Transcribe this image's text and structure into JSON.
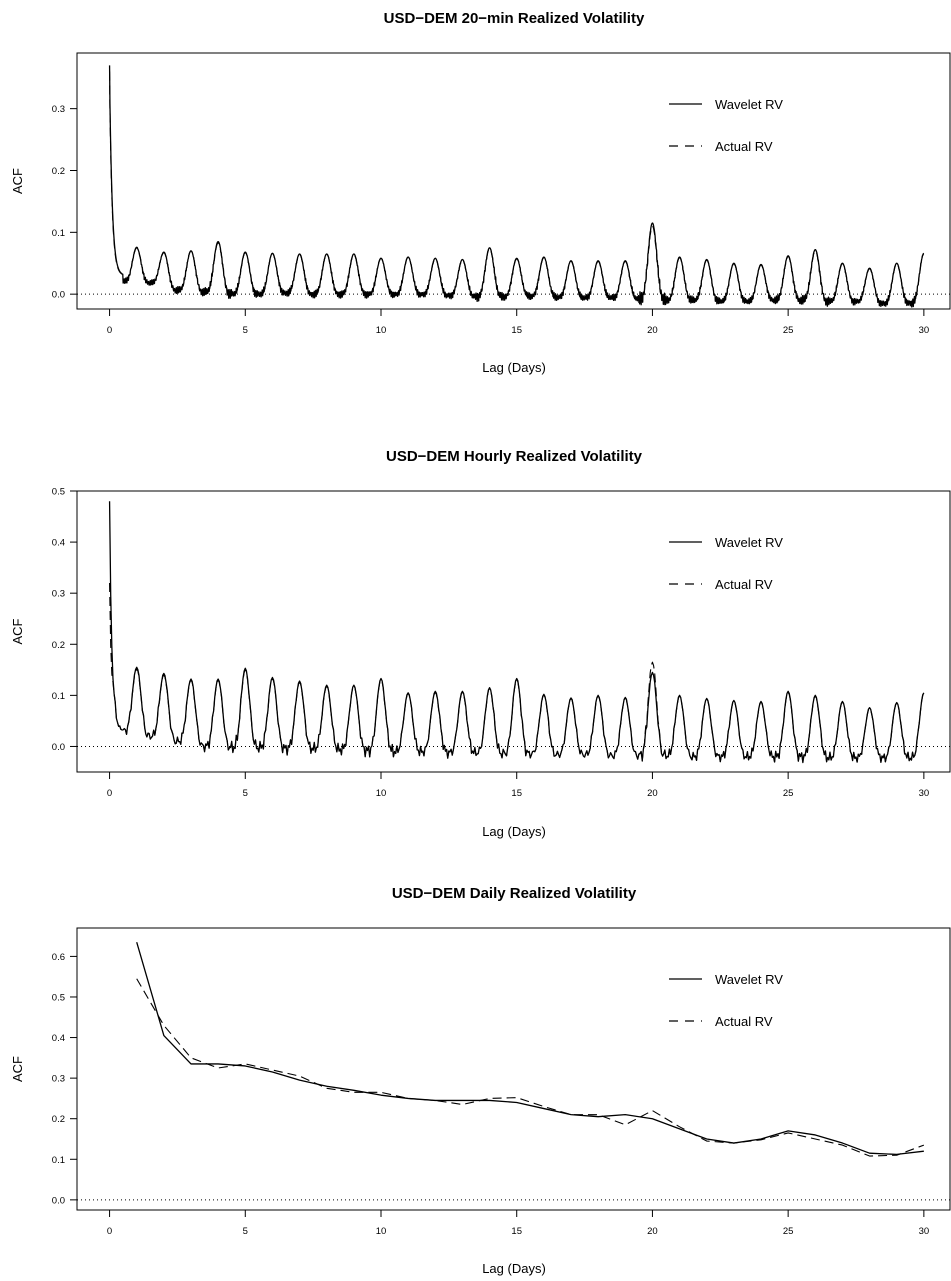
{
  "chart_data": [
    {
      "type": "line",
      "title": "USD−DEM 20−min Realized Volatility",
      "xlabel": "Lag (Days)",
      "ylabel": "ACF",
      "xlim": [
        -1.2,
        31
      ],
      "ylim": [
        -0.024,
        0.39
      ],
      "xticks": [
        0,
        5,
        10,
        15,
        20,
        25,
        30
      ],
      "yticks": [
        0.0,
        0.1,
        0.2,
        0.3
      ],
      "ytick_labels": [
        "0.0",
        "0.1",
        "0.2",
        "0.3"
      ],
      "legend_position": "top-right",
      "reference_line": {
        "y": 0,
        "style": "dotted"
      },
      "resolution_per_day": 72,
      "series": [
        {
          "name": "Wavelet RV",
          "style": "solid",
          "color": "#000000",
          "lag0": 0.37,
          "decay": 0.28,
          "peaks": [
            0.08,
            0.075,
            0.068,
            0.07,
            0.085,
            0.068,
            0.066,
            0.065,
            0.065,
            0.065,
            0.058,
            0.06,
            0.058,
            0.056,
            0.075,
            0.058,
            0.06,
            0.054,
            0.054,
            0.054,
            0.115,
            0.06,
            0.056,
            0.05,
            0.048,
            0.062,
            0.072,
            0.05,
            0.042,
            0.05,
            0.066
          ],
          "troughs": [
            0.02,
            0.018,
            0.006,
            0.003,
            0.0,
            0.0,
            0.002,
            0.0,
            0.0,
            0.0,
            0.0,
            0.0,
            -0.002,
            -0.004,
            -0.004,
            -0.003,
            -0.005,
            -0.006,
            -0.006,
            -0.008,
            -0.01,
            -0.01,
            -0.012,
            -0.012,
            -0.01,
            -0.01,
            -0.012,
            -0.012,
            -0.015,
            -0.014
          ]
        },
        {
          "name": "Actual RV",
          "style": "dashed",
          "color": "#000000",
          "lag0": 0.36,
          "decay": 0.27,
          "peaks": [
            0.079,
            0.076,
            0.067,
            0.07,
            0.083,
            0.067,
            0.066,
            0.064,
            0.065,
            0.064,
            0.058,
            0.06,
            0.057,
            0.055,
            0.074,
            0.057,
            0.059,
            0.053,
            0.053,
            0.053,
            0.11,
            0.059,
            0.055,
            0.049,
            0.047,
            0.061,
            0.07,
            0.049,
            0.041,
            0.049,
            0.065
          ],
          "troughs": [
            0.02,
            0.018,
            0.006,
            0.003,
            0.0,
            0.0,
            0.002,
            0.0,
            0.0,
            0.0,
            0.0,
            0.0,
            -0.002,
            -0.004,
            -0.004,
            -0.003,
            -0.005,
            -0.006,
            -0.006,
            -0.008,
            -0.01,
            -0.01,
            -0.012,
            -0.012,
            -0.01,
            -0.01,
            -0.012,
            -0.012,
            -0.015,
            -0.014
          ]
        }
      ]
    },
    {
      "type": "line",
      "title": "USD−DEM Hourly Realized Volatility",
      "xlabel": "Lag (Days)",
      "ylabel": "ACF",
      "xlim": [
        -1.2,
        31
      ],
      "ylim": [
        -0.05,
        0.5
      ],
      "xticks": [
        0,
        5,
        10,
        15,
        20,
        25,
        30
      ],
      "yticks": [
        0.0,
        0.1,
        0.2,
        0.3,
        0.4,
        0.5
      ],
      "ytick_labels": [
        "0.0",
        "0.1",
        "0.2",
        "0.3",
        "0.4",
        "0.5"
      ],
      "legend_position": "top-right",
      "reference_line": {
        "y": 0,
        "style": "dotted"
      },
      "resolution_per_day": 24,
      "series": [
        {
          "name": "Wavelet RV",
          "style": "solid",
          "color": "#000000",
          "lag0": 0.48,
          "decay": 0.25,
          "peaks": [
            0.16,
            0.155,
            0.143,
            0.132,
            0.132,
            0.153,
            0.135,
            0.128,
            0.12,
            0.12,
            0.133,
            0.105,
            0.108,
            0.108,
            0.115,
            0.133,
            0.102,
            0.095,
            0.1,
            0.096,
            0.145,
            0.1,
            0.094,
            0.09,
            0.088,
            0.108,
            0.1,
            0.088,
            0.076,
            0.086,
            0.105
          ],
          "troughs": [
            0.03,
            0.02,
            0.01,
            0.0,
            -0.002,
            -0.002,
            -0.004,
            -0.004,
            -0.006,
            -0.008,
            -0.01,
            -0.01,
            -0.012,
            -0.012,
            -0.014,
            -0.015,
            -0.016,
            -0.016,
            -0.018,
            -0.018,
            -0.018,
            -0.02,
            -0.02,
            -0.02,
            -0.02,
            -0.02,
            -0.022,
            -0.022,
            -0.022,
            -0.022
          ]
        },
        {
          "name": "Actual RV",
          "style": "dashed",
          "color": "#000000",
          "lag0": 0.32,
          "decay": 0.25,
          "peaks": [
            0.16,
            0.152,
            0.14,
            0.13,
            0.13,
            0.15,
            0.133,
            0.126,
            0.118,
            0.119,
            0.131,
            0.104,
            0.106,
            0.106,
            0.114,
            0.131,
            0.101,
            0.094,
            0.099,
            0.095,
            0.165,
            0.099,
            0.093,
            0.089,
            0.087,
            0.106,
            0.099,
            0.087,
            0.075,
            0.085,
            0.104
          ],
          "troughs": [
            0.03,
            0.02,
            0.01,
            0.0,
            -0.002,
            -0.002,
            -0.004,
            -0.004,
            -0.006,
            -0.008,
            -0.01,
            -0.01,
            -0.012,
            -0.012,
            -0.014,
            -0.015,
            -0.016,
            -0.016,
            -0.018,
            -0.018,
            -0.018,
            -0.02,
            -0.02,
            -0.02,
            -0.02,
            -0.02,
            -0.022,
            -0.022,
            -0.022,
            -0.022
          ]
        }
      ]
    },
    {
      "type": "line",
      "title": "USD−DEM Daily Realized Volatility",
      "xlabel": "Lag (Days)",
      "ylabel": "ACF",
      "xlim": [
        -1.2,
        31
      ],
      "ylim": [
        -0.025,
        0.67
      ],
      "xticks": [
        0,
        5,
        10,
        15,
        20,
        25,
        30
      ],
      "yticks": [
        0.0,
        0.1,
        0.2,
        0.3,
        0.4,
        0.5,
        0.6
      ],
      "ytick_labels": [
        "0.0",
        "0.1",
        "0.2",
        "0.3",
        "0.4",
        "0.5",
        "0.6"
      ],
      "legend_position": "top-right",
      "reference_line": {
        "y": 0,
        "style": "dotted"
      },
      "series": [
        {
          "name": "Wavelet RV",
          "style": "solid",
          "color": "#000000",
          "x": [
            1,
            2,
            3,
            4,
            5,
            6,
            7,
            8,
            9,
            10,
            11,
            12,
            13,
            14,
            15,
            16,
            17,
            18,
            19,
            20,
            21,
            22,
            23,
            24,
            25,
            26,
            27,
            28,
            29,
            30
          ],
          "y": [
            0.635,
            0.405,
            0.335,
            0.335,
            0.33,
            0.315,
            0.295,
            0.28,
            0.27,
            0.258,
            0.25,
            0.245,
            0.245,
            0.245,
            0.24,
            0.225,
            0.21,
            0.205,
            0.21,
            0.2,
            0.175,
            0.15,
            0.14,
            0.15,
            0.17,
            0.16,
            0.14,
            0.115,
            0.112,
            0.12
          ]
        },
        {
          "name": "Actual RV",
          "style": "dashed",
          "color": "#000000",
          "x": [
            1,
            2,
            3,
            4,
            5,
            6,
            7,
            8,
            9,
            10,
            11,
            12,
            13,
            14,
            15,
            16,
            17,
            18,
            19,
            20,
            21,
            22,
            23,
            24,
            25,
            26,
            27,
            28,
            29,
            30
          ],
          "y": [
            0.545,
            0.43,
            0.35,
            0.325,
            0.335,
            0.32,
            0.305,
            0.275,
            0.265,
            0.265,
            0.25,
            0.245,
            0.235,
            0.25,
            0.252,
            0.23,
            0.21,
            0.21,
            0.185,
            0.22,
            0.18,
            0.145,
            0.14,
            0.148,
            0.165,
            0.15,
            0.135,
            0.108,
            0.11,
            0.135
          ]
        }
      ]
    }
  ]
}
